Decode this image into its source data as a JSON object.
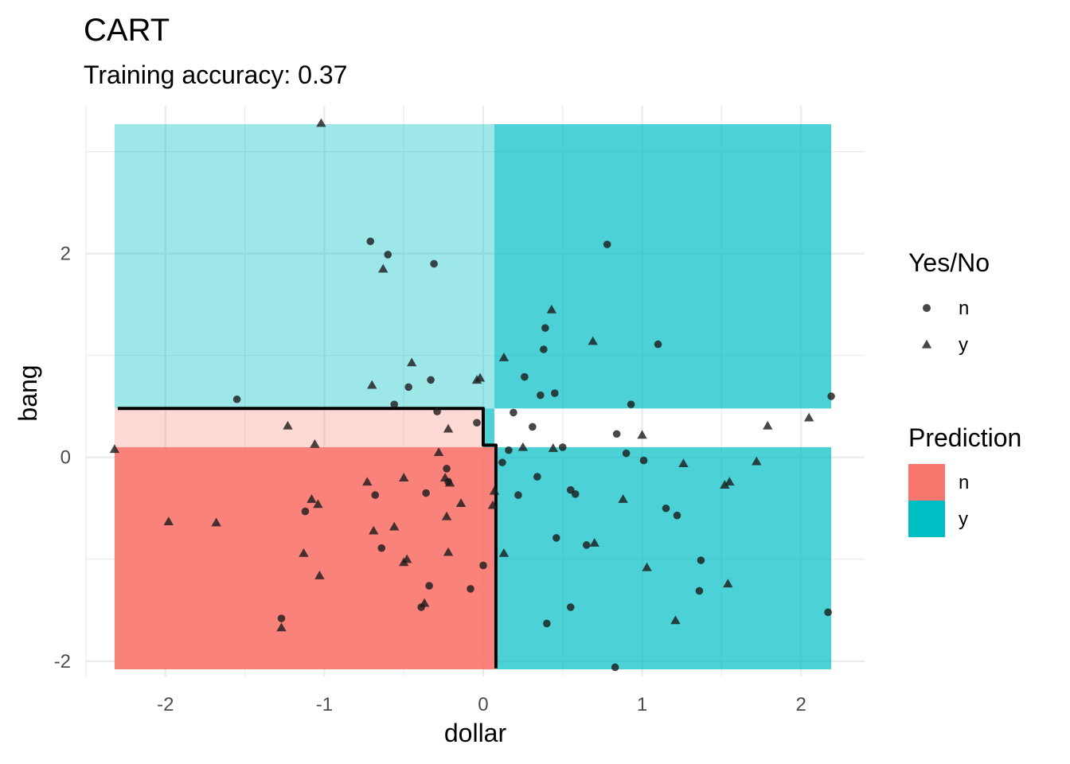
{
  "chart_data": {
    "type": "scatter",
    "title": "CART",
    "subtitle": "Training accuracy: 0.37",
    "xlabel": "dollar",
    "ylabel": "bang",
    "xlim": [
      -2.5,
      2.4
    ],
    "ylim": [
      -2.15,
      3.45
    ],
    "x_ticks": [
      -2,
      -1,
      0,
      1,
      2
    ],
    "y_ticks": [
      -2,
      0,
      2
    ],
    "grid": true,
    "legend_placement": "right",
    "colors": {
      "n": "#f8766d",
      "y": "#00bfc4",
      "point": "#1a1a1a",
      "boundary": "#000000",
      "grid": "#ebebeb"
    },
    "legends": [
      {
        "title": "Yes/No",
        "items": [
          {
            "label": "n",
            "shape": "circle"
          },
          {
            "label": "y",
            "shape": "triangle"
          }
        ]
      },
      {
        "title": "Prediction",
        "items": [
          {
            "label": "n",
            "fill": "#f8766d"
          },
          {
            "label": "y",
            "fill": "#00bfc4"
          }
        ]
      }
    ],
    "regions": [
      {
        "x": [
          -2.32,
          0.07
        ],
        "y": [
          0.48,
          3.27
        ],
        "prediction": "y",
        "alpha": 0.38
      },
      {
        "x": [
          0.07,
          2.19
        ],
        "y": [
          0.48,
          3.27
        ],
        "prediction": "y",
        "alpha": 0.7
      },
      {
        "x": [
          -2.32,
          0.0
        ],
        "y": [
          0.1,
          0.48
        ],
        "prediction": "n",
        "alpha": 0.28
      },
      {
        "x": [
          0.0,
          0.07
        ],
        "y": [
          0.1,
          0.48
        ],
        "prediction": "y",
        "alpha": 0.7
      },
      {
        "x": [
          -2.32,
          0.08
        ],
        "y": [
          -2.08,
          0.1
        ],
        "prediction": "n",
        "alpha": 0.9
      },
      {
        "x": [
          0.08,
          2.19
        ],
        "y": [
          -2.08,
          0.1
        ],
        "prediction": "y",
        "alpha": 0.7
      }
    ],
    "decision_boundary": [
      [
        -2.3,
        0.48
      ],
      [
        0.0,
        0.48
      ],
      [
        0.0,
        0.12
      ],
      [
        0.08,
        0.12
      ],
      [
        0.08,
        -2.07
      ]
    ],
    "series": [
      {
        "name": "n",
        "points": [
          [
            -0.71,
            2.12
          ],
          [
            -0.6,
            1.99
          ],
          [
            -0.31,
            1.9
          ],
          [
            0.78,
            2.09
          ],
          [
            -1.55,
            0.57
          ],
          [
            -0.56,
            0.52
          ],
          [
            -0.47,
            0.69
          ],
          [
            -0.33,
            0.76
          ],
          [
            -0.29,
            0.45
          ],
          [
            -0.04,
            0.34
          ],
          [
            0.39,
            1.27
          ],
          [
            0.38,
            1.06
          ],
          [
            0.26,
            0.79
          ],
          [
            0.45,
            0.63
          ],
          [
            0.36,
            0.61
          ],
          [
            0.19,
            0.44
          ],
          [
            0.31,
            0.3
          ],
          [
            0.5,
            0.1
          ],
          [
            0.16,
            0.07
          ],
          [
            0.12,
            -0.05
          ],
          [
            1.1,
            1.11
          ],
          [
            0.93,
            0.52
          ],
          [
            0.84,
            0.23
          ],
          [
            0.9,
            0.04
          ],
          [
            1.01,
            -0.03
          ],
          [
            2.19,
            0.6
          ],
          [
            -0.23,
            -0.11
          ],
          [
            -0.22,
            -0.24
          ],
          [
            -0.36,
            -0.35
          ],
          [
            -0.68,
            -0.37
          ],
          [
            -1.12,
            -0.53
          ],
          [
            -0.64,
            -0.89
          ],
          [
            -0.34,
            -1.26
          ],
          [
            -0.39,
            -1.47
          ],
          [
            -0.08,
            -1.29
          ],
          [
            0.0,
            -1.06
          ],
          [
            -1.27,
            -1.58
          ],
          [
            0.34,
            -0.19
          ],
          [
            0.22,
            -0.37
          ],
          [
            0.55,
            -0.32
          ],
          [
            0.58,
            -0.36
          ],
          [
            0.46,
            -0.79
          ],
          [
            0.65,
            -0.86
          ],
          [
            1.15,
            -0.5
          ],
          [
            1.22,
            -0.57
          ],
          [
            1.37,
            -1.01
          ],
          [
            1.36,
            -1.31
          ],
          [
            0.55,
            -1.47
          ],
          [
            0.4,
            -1.63
          ],
          [
            0.83,
            -2.06
          ],
          [
            2.17,
            -1.52
          ]
        ]
      },
      {
        "name": "y",
        "points": [
          [
            -1.02,
            3.28
          ],
          [
            -0.63,
            1.85
          ],
          [
            0.43,
            1.45
          ],
          [
            0.69,
            1.14
          ],
          [
            0.13,
            0.98
          ],
          [
            -0.45,
            0.93
          ],
          [
            -0.7,
            0.71
          ],
          [
            -0.04,
            0.76
          ],
          [
            -0.02,
            0.78
          ],
          [
            -1.23,
            0.31
          ],
          [
            -1.06,
            0.13
          ],
          [
            -0.22,
            0.28
          ],
          [
            -0.28,
            0.05
          ],
          [
            0.25,
            0.1
          ],
          [
            0.44,
            0.09
          ],
          [
            1.0,
            0.22
          ],
          [
            1.26,
            -0.06
          ],
          [
            1.79,
            0.31
          ],
          [
            2.05,
            0.39
          ],
          [
            1.72,
            -0.04
          ],
          [
            1.55,
            -0.24
          ],
          [
            1.52,
            -0.27
          ],
          [
            -2.32,
            0.08
          ],
          [
            -1.98,
            -0.63
          ],
          [
            -1.68,
            -0.64
          ],
          [
            -0.73,
            -0.24
          ],
          [
            -0.5,
            -0.2
          ],
          [
            -0.24,
            -0.2
          ],
          [
            -0.21,
            -0.25
          ],
          [
            -0.14,
            -0.45
          ],
          [
            0.07,
            -0.33
          ],
          [
            0.06,
            -0.47
          ],
          [
            -1.08,
            -0.41
          ],
          [
            -1.04,
            -0.46
          ],
          [
            -0.69,
            -0.72
          ],
          [
            -0.56,
            -0.68
          ],
          [
            -0.23,
            -0.58
          ],
          [
            -0.22,
            -0.93
          ],
          [
            -1.13,
            -0.94
          ],
          [
            -0.5,
            -1.03
          ],
          [
            -0.48,
            -1.0
          ],
          [
            -1.03,
            -1.16
          ],
          [
            -0.37,
            -1.43
          ],
          [
            -1.27,
            -1.67
          ],
          [
            0.13,
            -0.94
          ],
          [
            0.7,
            -0.84
          ],
          [
            0.88,
            -0.41
          ],
          [
            1.03,
            -1.08
          ],
          [
            1.54,
            -1.24
          ],
          [
            1.21,
            -1.6
          ]
        ]
      }
    ]
  }
}
